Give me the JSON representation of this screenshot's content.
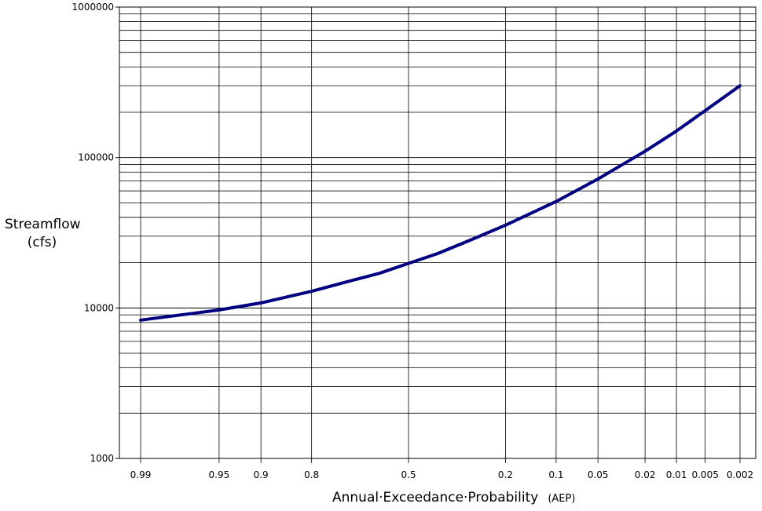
{
  "chart_data": {
    "type": "line",
    "xlabel": "Annual·Exceedance·Probability",
    "xlabel_unit": "(AEP)",
    "ylabel_line1": "Streamflow",
    "ylabel_line2": "(cfs)",
    "y_scale": "log",
    "x_scale": "normal-probability",
    "ylim": [
      1000,
      1000000
    ],
    "y_ticks": [
      1000,
      10000,
      100000,
      1000000
    ],
    "x_ticks": [
      0.99,
      0.95,
      0.9,
      0.8,
      0.5,
      0.2,
      0.1,
      0.05,
      0.02,
      0.01,
      0.005,
      0.002
    ],
    "x_tick_labels": [
      "0.99",
      "0.95",
      "0.9",
      "0.8",
      "0.5",
      "0.2",
      "0.1",
      "0.05",
      "0.02",
      "0.01",
      "0.005",
      "0.002"
    ],
    "grid": true,
    "line_color": "#000080",
    "series": [
      {
        "x": [
          0.99,
          0.95,
          0.9,
          0.8,
          0.7,
          0.6,
          0.5,
          0.4,
          0.3,
          0.2,
          0.1,
          0.05,
          0.02,
          0.01,
          0.005,
          0.002
        ],
        "y": [
          8300,
          9700,
          10800,
          12900,
          15000,
          17000,
          19800,
          23000,
          28000,
          35500,
          51000,
          72000,
          110000,
          150000,
          205000,
          300000
        ]
      }
    ]
  }
}
